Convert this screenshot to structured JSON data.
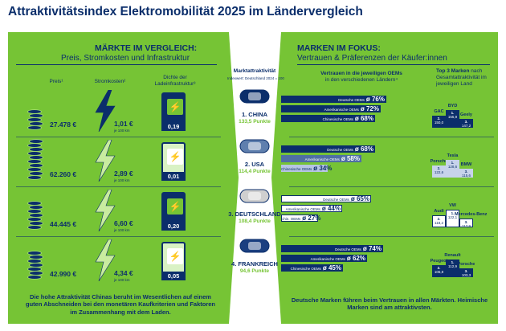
{
  "title": "Attraktivitätsindex Elektromobilität 2025 im Ländervergleich",
  "left": {
    "heading": "MÄRKTE IM VERGLEICH:",
    "subheading": "Preis, Stromkosten und Infrastruktur",
    "col_price": "Preis¹",
    "col_cost": "Stromkosten²",
    "col_density_1": "Dichte der",
    "col_density_2": "Ladeinfrastruktur³",
    "unit": "je 100 km",
    "footnote": "Die hohe Attraktivität Chinas beruht im Wesentlichen auf einem guten Abschneiden bei den monetären Kaufkriterien und Faktoren im Zusammenhang mit dem Laden."
  },
  "middle": {
    "heading": "Marktattraktivität",
    "sub": "Indexwert: Deutschland 2024 = 100"
  },
  "right": {
    "heading": "MARKEN IM FOKUS:",
    "subheading": "Vertrauen & Präferenzen der Käufer:innen",
    "col_trust_1": "Vertrauen in die jeweiligen OEMs",
    "col_trust_2": "in den verschiedenen Ländern⁴",
    "col_top3_bold": "Top 3 Marken",
    "col_top3_rest": " nach Gesamtattraktivität im jeweiligen Land",
    "footnote": "Deutsche Marken führen beim Vertrauen in allen Märkten. Heimische Marken sind am attraktivsten."
  },
  "chart_data": {
    "type": "table",
    "countries": [
      {
        "rank_name": "1. CHINA",
        "score": "133,5 Punkte",
        "score_value": 133.5,
        "price": "27.478 €",
        "price_value": 27478,
        "cost": "1,01 €",
        "cost_value": 1.01,
        "density": "0,19",
        "density_value": 0.19,
        "trust": [
          {
            "label": "Deutsche OEMs",
            "value": 76,
            "display": "ø 76%"
          },
          {
            "label": "Amerikanische OEMs",
            "value": 72,
            "display": "ø 72%"
          },
          {
            "label": "Chinesische OEMs",
            "value": 68,
            "display": "ø 68%"
          }
        ],
        "trust_style": "dark",
        "top3": [
          {
            "place": "1.",
            "brand": "BYD",
            "score": "155,9"
          },
          {
            "place": "2.",
            "brand": "GAC",
            "score": "150,0"
          },
          {
            "place": "3.",
            "brand": "Geely",
            "score": "147,2"
          }
        ]
      },
      {
        "rank_name": "2. USA",
        "score": "114,4 Punkte",
        "score_value": 114.4,
        "price": "62.260 €",
        "price_value": 62260,
        "cost": "2,89 €",
        "cost_value": 2.89,
        "density": "0,01",
        "density_value": 0.01,
        "trust": [
          {
            "label": "Deutsche OEMs",
            "value": 68,
            "display": "ø 68%"
          },
          {
            "label": "Amerikanische OEMs",
            "value": 58,
            "display": "ø 58%"
          },
          {
            "label": "Chinesische OEMs",
            "value": 34,
            "display": "ø 34%"
          }
        ],
        "trust_style": "mid",
        "top3": [
          {
            "place": "1.",
            "brand": "Tesla",
            "score": "128,6"
          },
          {
            "place": "2.",
            "brand": "Porsche",
            "score": "122,6"
          },
          {
            "place": "3.",
            "brand": "BMW",
            "score": "115,6"
          }
        ]
      },
      {
        "rank_name": "3. DEUTSCHLAND",
        "score": "108,4 Punkte",
        "score_value": 108.4,
        "price": "44.445 €",
        "price_value": 44445,
        "cost": "6,60 €",
        "cost_value": 6.6,
        "density": "0,20",
        "density_value": 0.2,
        "trust": [
          {
            "label": "Deutsche OEMs",
            "value": 65,
            "display": "ø 65%"
          },
          {
            "label": "Amerikanische OEMs",
            "value": 44,
            "display": "ø 44%"
          },
          {
            "label": "Chin. OEMs",
            "value": 27,
            "display": "ø 27%"
          }
        ],
        "trust_style": "light",
        "top3": [
          {
            "place": "1.",
            "brand": "VW",
            "score": "122,1"
          },
          {
            "place": "2.",
            "brand": "Audi",
            "score": "118,2"
          },
          {
            "place": "3.",
            "brand": "Mercedes-Benz",
            "score": "117,9"
          }
        ]
      },
      {
        "rank_name": "4. FRANKREICH",
        "score": "94,6 Punkte",
        "score_value": 94.6,
        "price": "42.990 €",
        "price_value": 42990,
        "cost": "4,34 €",
        "cost_value": 4.34,
        "density": "0,05",
        "density_value": 0.05,
        "trust": [
          {
            "label": "Deutsche OEMs",
            "value": 74,
            "display": "ø 74%"
          },
          {
            "label": "Amerikanische OEMs",
            "value": 62,
            "display": "ø 62%"
          },
          {
            "label": "Chinesische OEMs",
            "value": 45,
            "display": "ø 45%"
          }
        ],
        "trust_style": "dark",
        "top3": [
          {
            "place": "1.",
            "brand": "Renault",
            "score": "112,9"
          },
          {
            "place": "2.",
            "brand": "Peugeot",
            "score": "106,8"
          },
          {
            "place": "3.",
            "brand": "Porsche",
            "score": "103,3"
          }
        ]
      }
    ]
  },
  "colors": {
    "green": "#76c435",
    "navy": "#0b2e6b",
    "car_china": "#0b2e6b",
    "car_usa": "#5f7fae",
    "car_de": "#cfcfcf",
    "car_fr": "#1b3f80"
  }
}
